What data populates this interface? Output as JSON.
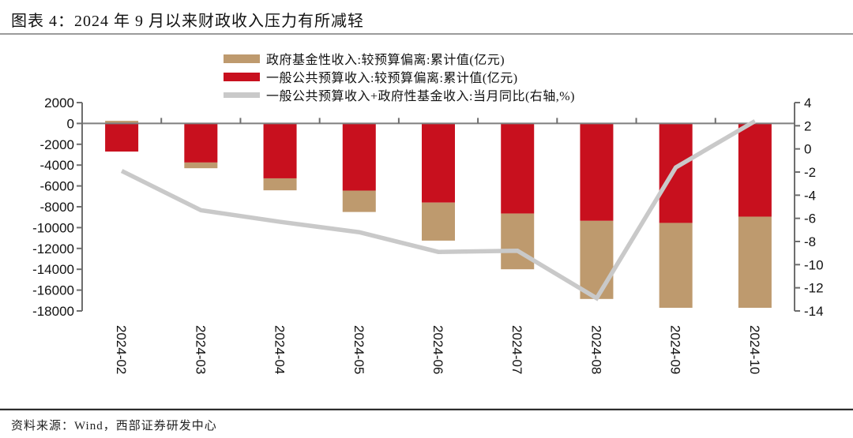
{
  "page": {
    "title": "图表 4：2024 年 9 月以来财政收入压力有所减轻",
    "source": "资料来源：Wind，西部证券研发中心"
  },
  "chart_data": {
    "type": "bar",
    "subtype": "stacked-bar-with-line",
    "title": "2024 年 9 月以来财政收入压力有所减轻",
    "categories": [
      "2024-02",
      "2024-03",
      "2024-04",
      "2024-05",
      "2024-06",
      "2024-07",
      "2024-08",
      "2024-09",
      "2024-10"
    ],
    "series": [
      {
        "name": "政府基金性收入:较预算偏离:累计值(亿元)",
        "type": "bar",
        "axis": "left",
        "color": "#BE9A6E",
        "values": [
          250,
          -550,
          -1150,
          -2050,
          -3650,
          -5350,
          -7500,
          -8150,
          -8750
        ]
      },
      {
        "name": "一般公共预算收入:较预算偏离:累计值(亿元)",
        "type": "bar",
        "axis": "left",
        "color": "#C8101E",
        "values": [
          -2700,
          -3750,
          -5270,
          -6450,
          -7600,
          -8650,
          -9350,
          -9550,
          -8950
        ]
      },
      {
        "name": "一般公共预算收入+政府性基金收入:当月同比(右轴,%)",
        "type": "line",
        "axis": "right",
        "color": "#C9C9C9",
        "values": [
          -1.9,
          -5.3,
          -6.3,
          -7.2,
          -8.9,
          -8.8,
          -12.9,
          -1.6,
          2.4
        ]
      }
    ],
    "left_axis": {
      "ticks": [
        2000,
        0,
        -2000,
        -4000,
        -6000,
        -8000,
        -10000,
        -12000,
        -14000,
        -16000,
        -18000
      ],
      "max": 2000,
      "min": -18000
    },
    "right_axis": {
      "ticks": [
        4,
        2,
        0,
        -2,
        -4,
        -6,
        -8,
        -10,
        -12,
        -14
      ],
      "max": 4,
      "min": -14
    },
    "legend_position": "top",
    "grid": false,
    "colors": {
      "axis": "#6e6e6e",
      "zero_line": "#7f7f7f",
      "tick_label": "#111111"
    }
  }
}
